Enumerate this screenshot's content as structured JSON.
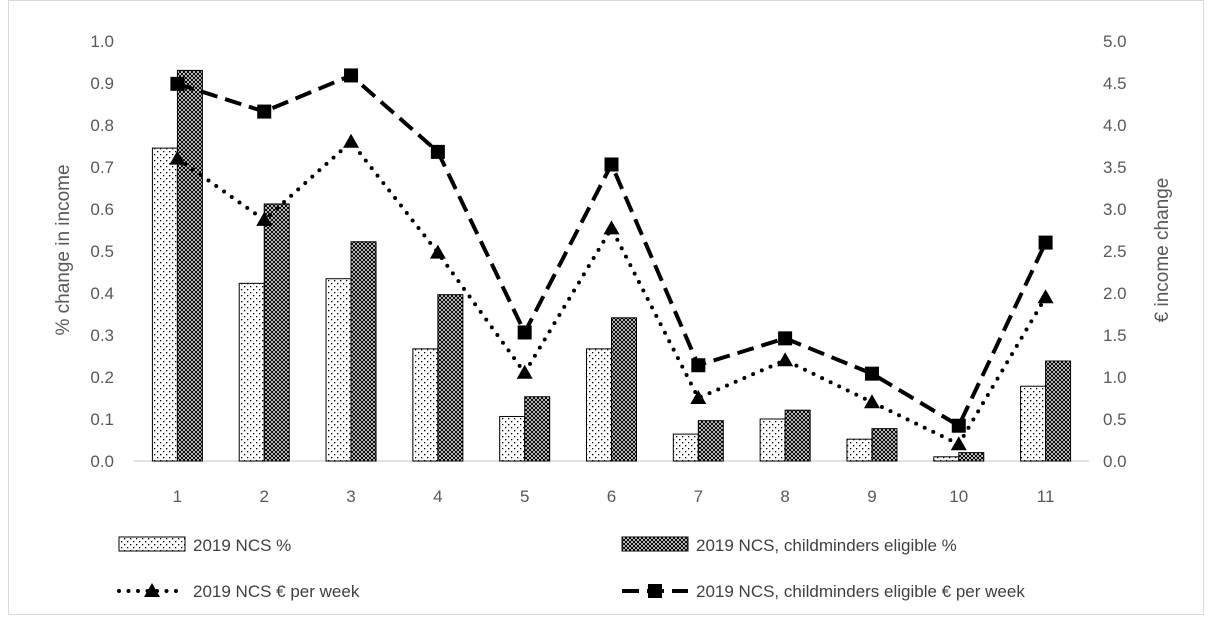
{
  "chart_data": {
    "type": "bar",
    "categories": [
      "1",
      "2",
      "3",
      "4",
      "5",
      "6",
      "7",
      "8",
      "9",
      "10",
      "11"
    ],
    "series": [
      {
        "name": "2019 NCS %",
        "kind": "bar",
        "axis": "left",
        "pattern": "dots",
        "values": [
          0.745,
          0.423,
          0.434,
          0.267,
          0.106,
          0.267,
          0.064,
          0.1,
          0.052,
          0.01,
          0.178
        ]
      },
      {
        "name": "2019 NCS, childminders eligible %",
        "kind": "bar",
        "axis": "left",
        "pattern": "crosshatch",
        "values": [
          0.93,
          0.612,
          0.522,
          0.396,
          0.153,
          0.341,
          0.096,
          0.121,
          0.077,
          0.02,
          0.238
        ]
      },
      {
        "name": "2019 NCS € per week",
        "kind": "line",
        "axis": "right",
        "line_style": "dotted",
        "marker": "triangle",
        "values": [
          3.6,
          2.87,
          3.8,
          2.48,
          1.05,
          2.77,
          0.75,
          1.2,
          0.7,
          0.2,
          1.95
        ]
      },
      {
        "name": "2019 NCS, childminders eligible € per week",
        "kind": "line",
        "axis": "right",
        "line_style": "dashed",
        "marker": "square",
        "values": [
          4.49,
          4.16,
          4.59,
          3.68,
          1.53,
          3.53,
          1.14,
          1.46,
          1.04,
          0.42,
          2.6
        ]
      }
    ],
    "ylabel": "% change in income",
    "y2label": "€ income change",
    "ylim": [
      0,
      1.0
    ],
    "y2lim": [
      0,
      5.0
    ],
    "yticks": [
      "0.0",
      "0.1",
      "0.2",
      "0.3",
      "0.4",
      "0.5",
      "0.6",
      "0.7",
      "0.8",
      "0.9",
      "1.0"
    ],
    "y2ticks": [
      "0.0",
      "0.5",
      "1.0",
      "1.5",
      "2.0",
      "2.5",
      "3.0",
      "3.5",
      "4.0",
      "4.5",
      "5.0"
    ],
    "legend_position": "bottom",
    "grid": false,
    "colors": {
      "ink": "#000000",
      "axis_text": "#595959",
      "axis_line": "#d9d9d9"
    }
  }
}
